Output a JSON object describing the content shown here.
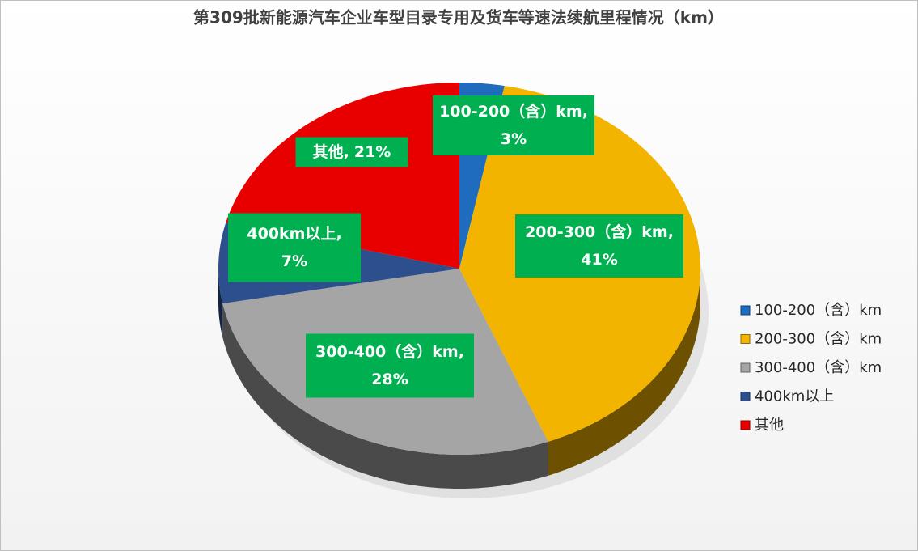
{
  "chart_data": {
    "type": "pie",
    "title": "第309批新能源汽车企业车型目录专用及货车等速法续航里程情况（km）",
    "categories": [
      "100-200（含）km",
      "200-300（含）km",
      "300-400（含）km",
      "400km以上",
      "其他"
    ],
    "values": [
      3,
      41,
      28,
      7,
      21
    ],
    "value_labels": [
      "3%",
      "41%",
      "28%",
      "7%",
      "21%"
    ],
    "data_label_names": [
      "100-200（含）km,",
      "200-300（含）km,",
      "300-400（含）km,",
      "400km以上,",
      "其他,"
    ],
    "colors": [
      "#1f6cbf",
      "#f3b400",
      "#a5a5a5",
      "#2e4f8e",
      "#e80000"
    ],
    "legend": "right"
  }
}
